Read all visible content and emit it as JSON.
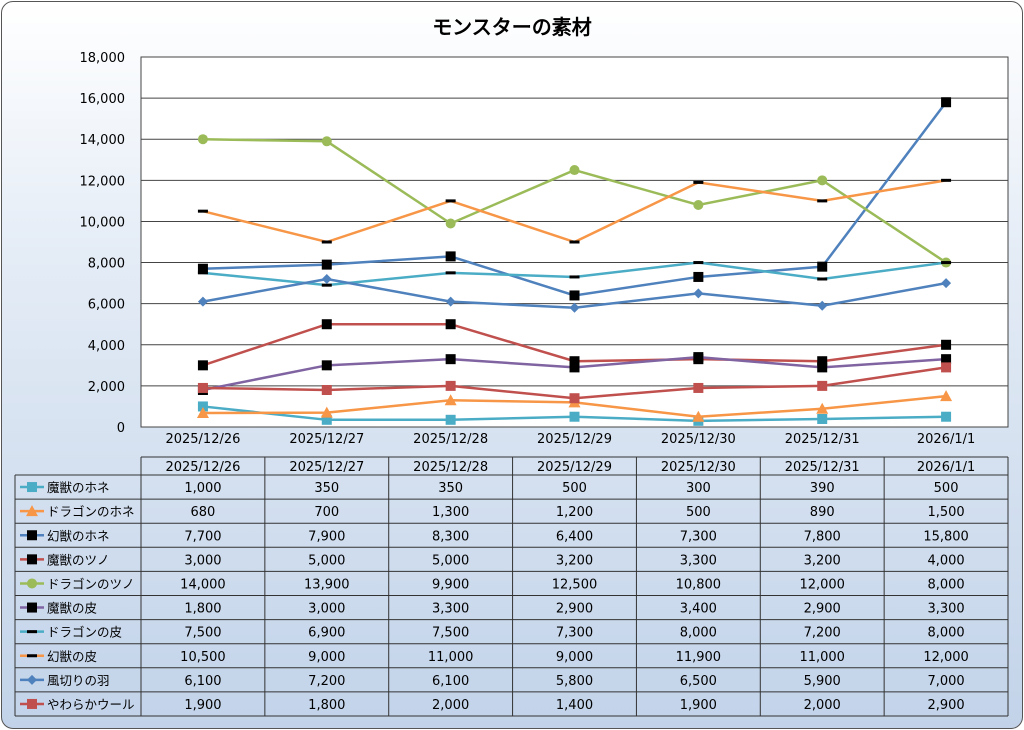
{
  "chart_data": {
    "type": "line",
    "title": "モンスターの素材",
    "xlabel": "",
    "ylabel": "",
    "ylim": [
      0,
      18000
    ],
    "yticks": [
      0,
      2000,
      4000,
      6000,
      8000,
      10000,
      12000,
      14000,
      16000,
      18000
    ],
    "ytick_labels": [
      "0",
      "2,000",
      "4,000",
      "6,000",
      "8,000",
      "10,000",
      "12,000",
      "14,000",
      "16,000",
      "18,000"
    ],
    "grid": true,
    "legend": "data-table",
    "categories": [
      "2025/12/26",
      "2025/12/27",
      "2025/12/28",
      "2025/12/29",
      "2025/12/30",
      "2025/12/31",
      "2026/1/1"
    ],
    "series": [
      {
        "name": "魔獣のホネ",
        "color": "#4BACC6",
        "marker": "square",
        "marker_color": "#4BACC6",
        "values": [
          1000,
          350,
          350,
          500,
          300,
          390,
          500
        ]
      },
      {
        "name": "ドラゴンのホネ",
        "color": "#F79646",
        "marker": "triangle",
        "marker_color": "#F79646",
        "values": [
          680,
          700,
          1300,
          1200,
          500,
          890,
          1500
        ]
      },
      {
        "name": "幻獣のホネ",
        "color": "#4F81BD",
        "marker": "square",
        "marker_color": "#000000",
        "values": [
          7700,
          7900,
          8300,
          6400,
          7300,
          7800,
          15800
        ]
      },
      {
        "name": "魔獣のツノ",
        "color": "#C0504D",
        "marker": "square",
        "marker_color": "#000000",
        "values": [
          3000,
          5000,
          5000,
          3200,
          3300,
          3200,
          4000
        ]
      },
      {
        "name": "ドラゴンのツノ",
        "color": "#9BBB59",
        "marker": "circle",
        "marker_color": "#9BBB59",
        "values": [
          14000,
          13900,
          9900,
          12500,
          10800,
          12000,
          8000
        ]
      },
      {
        "name": "魔獣の皮",
        "color": "#8064A2",
        "marker": "square",
        "marker_color": "#000000",
        "values": [
          1800,
          3000,
          3300,
          2900,
          3400,
          2900,
          3300
        ]
      },
      {
        "name": "ドラゴンの皮",
        "color": "#4BACC6",
        "marker": "dash",
        "marker_color": "#000000",
        "values": [
          7500,
          6900,
          7500,
          7300,
          8000,
          7200,
          8000
        ]
      },
      {
        "name": "幻獣の皮",
        "color": "#F79646",
        "marker": "dash",
        "marker_color": "#000000",
        "values": [
          10500,
          9000,
          11000,
          9000,
          11900,
          11000,
          12000
        ]
      },
      {
        "name": "風切りの羽",
        "color": "#4F81BD",
        "marker": "diamond",
        "marker_color": "#4F81BD",
        "values": [
          6100,
          7200,
          6100,
          5800,
          6500,
          5900,
          7000
        ]
      },
      {
        "name": "やわらかウール",
        "color": "#C0504D",
        "marker": "square",
        "marker_color": "#C0504D",
        "values": [
          1900,
          1800,
          2000,
          1400,
          1900,
          2000,
          2900
        ]
      }
    ]
  }
}
